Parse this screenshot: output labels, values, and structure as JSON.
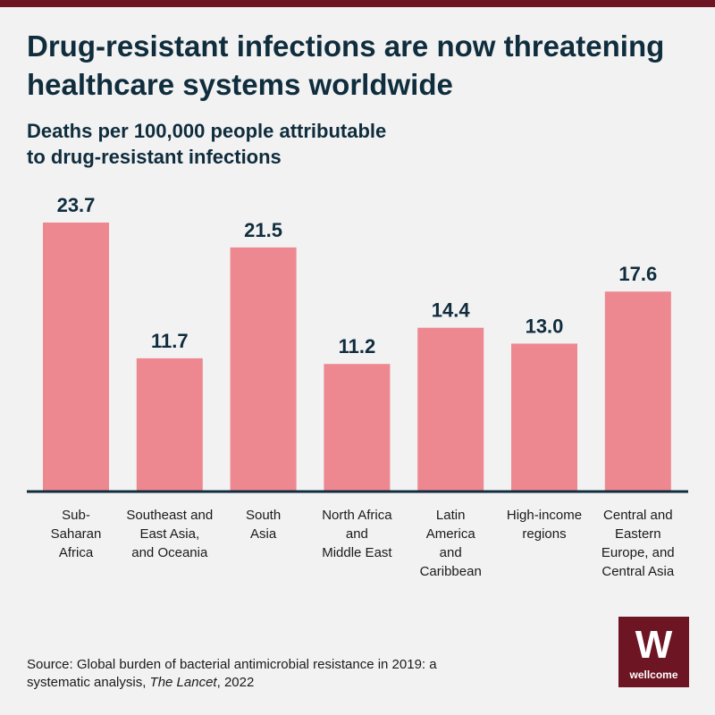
{
  "title": "Drug-resistant infections are now threatening healthcare systems worldwide",
  "subtitle_line1": "Deaths per 100,000 people attributable",
  "subtitle_line2": "to drug-resistant infections",
  "source": {
    "prefix": "Source: Global burden of bacterial antimicrobial resistance in 2019: a systematic analysis, ",
    "journal": "The Lancet",
    "suffix": ", 2022"
  },
  "logo": {
    "mark": "W",
    "word": "wellcome"
  },
  "colors": {
    "bar": "#ee8890",
    "axis": "#0f2d3d",
    "accent": "#6e1523",
    "background": "#f2f2f2"
  },
  "chart_data": {
    "type": "bar",
    "categories": [
      [
        "Sub-",
        "Saharan",
        "Africa"
      ],
      [
        "Southeast and",
        "East Asia,",
        "and Oceania"
      ],
      [
        "South",
        "Asia"
      ],
      [
        "North Africa",
        "and",
        "Middle East"
      ],
      [
        "Latin",
        "America",
        "and",
        "Caribbean"
      ],
      [
        "High-income",
        "regions"
      ],
      [
        "Central and",
        "Eastern",
        "Europe, and",
        "Central Asia"
      ]
    ],
    "values": [
      23.7,
      11.7,
      21.5,
      11.2,
      14.4,
      13.0,
      17.6
    ],
    "value_labels": [
      "23.7",
      "11.7",
      "21.5",
      "11.2",
      "14.4",
      "13.0",
      "17.6"
    ],
    "ylim": [
      0,
      23.7
    ],
    "grid": false,
    "legend": "none"
  }
}
